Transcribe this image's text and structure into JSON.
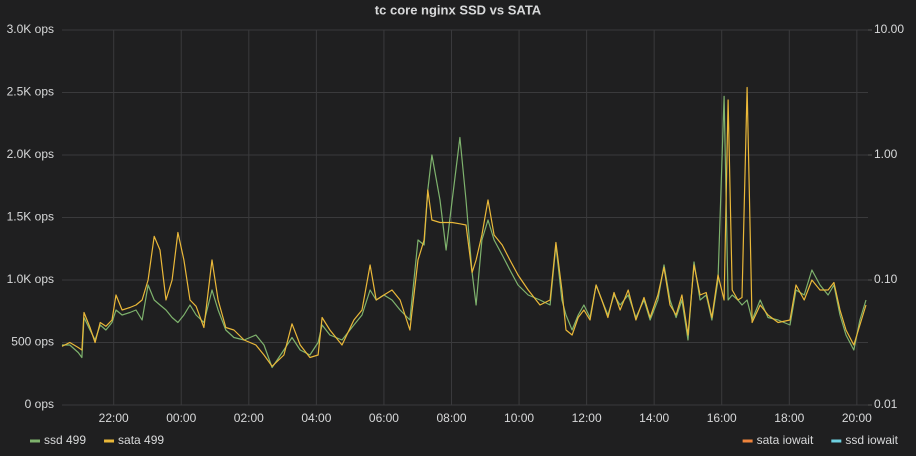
{
  "chart_data": {
    "type": "line",
    "title": "tc core nginx SSD vs SATA",
    "x": [
      20.47,
      20.7,
      20.95,
      21.06,
      21.12,
      21.3,
      21.45,
      21.6,
      21.77,
      21.95,
      22.07,
      22.25,
      22.48,
      22.66,
      22.84,
      23.02,
      23.2,
      23.37,
      23.55,
      23.73,
      23.9,
      24.08,
      24.26,
      24.44,
      24.67,
      24.91,
      25.09,
      25.32,
      25.56,
      25.86,
      26.21,
      26.45,
      26.69,
      27.04,
      27.28,
      27.52,
      27.81,
      28.05,
      28.17,
      28.4,
      28.76,
      29.11,
      29.35,
      29.59,
      29.77,
      30.0,
      30.24,
      30.48,
      30.77,
      31.01,
      31.19,
      31.3,
      31.42,
      31.66,
      31.84,
      32.02,
      32.25,
      32.43,
      32.61,
      32.73,
      32.9,
      33.08,
      33.26,
      33.5,
      33.73,
      33.97,
      34.27,
      34.62,
      34.92,
      35.09,
      35.27,
      35.39,
      35.57,
      35.75,
      35.92,
      36.1,
      36.28,
      36.45,
      36.63,
      36.81,
      36.99,
      37.23,
      37.46,
      37.7,
      37.88,
      38.11,
      38.29,
      38.47,
      38.65,
      38.82,
      39.0,
      39.18,
      39.36,
      39.54,
      39.71,
      39.89,
      40.07,
      40.19,
      40.31,
      40.48,
      40.6,
      40.75,
      40.9,
      41.14,
      41.37,
      41.67,
      42.02,
      42.2,
      42.44,
      42.67,
      42.91,
      43.15,
      43.32,
      43.5,
      43.68,
      43.91,
      44.09,
      44.27
    ],
    "series": [
      {
        "name": "ssd 499",
        "color": "#7eb26d",
        "values": [
          480,
          480,
          420,
          380,
          700,
          600,
          520,
          640,
          600,
          660,
          760,
          720,
          740,
          760,
          680,
          960,
          840,
          800,
          760,
          700,
          660,
          720,
          800,
          720,
          660,
          920,
          760,
          600,
          540,
          520,
          560,
          480,
          300,
          440,
          540,
          440,
          400,
          500,
          640,
          560,
          520,
          640,
          720,
          920,
          840,
          880,
          840,
          760,
          680,
          1320,
          1280,
          1720,
          2000,
          1640,
          1240,
          1640,
          2140,
          1640,
          1060,
          800,
          1320,
          1480,
          1320,
          1200,
          1080,
          960,
          880,
          840,
          800,
          1280,
          840,
          720,
          600,
          720,
          800,
          700,
          960,
          840,
          720,
          880,
          800,
          880,
          700,
          840,
          680,
          840,
          1120,
          840,
          700,
          840,
          520,
          1144,
          840,
          880,
          680,
          1000,
          2470,
          840,
          880,
          840,
          800,
          840,
          680,
          840,
          700,
          680,
          640,
          920,
          880,
          1080,
          960,
          880,
          960,
          720,
          560,
          440,
          680,
          840
        ]
      },
      {
        "name": "sata 499",
        "color": "#eab839",
        "values": [
          470,
          500,
          460,
          440,
          740,
          620,
          500,
          660,
          630,
          680,
          880,
          760,
          780,
          800,
          840,
          1000,
          1350,
          1240,
          840,
          1000,
          1380,
          1160,
          840,
          790,
          620,
          1160,
          840,
          620,
          600,
          520,
          480,
          400,
          310,
          400,
          650,
          480,
          380,
          400,
          700,
          600,
          480,
          680,
          760,
          1120,
          840,
          880,
          920,
          840,
          600,
          1160,
          1320,
          1720,
          1480,
          1460,
          1460,
          1460,
          1450,
          1440,
          1060,
          1160,
          1360,
          1640,
          1360,
          1280,
          1160,
          1040,
          920,
          800,
          840,
          1300,
          920,
          600,
          560,
          700,
          760,
          680,
          960,
          840,
          700,
          900,
          760,
          920,
          680,
          860,
          700,
          880,
          1100,
          800,
          720,
          880,
          560,
          1120,
          880,
          900,
          700,
          1040,
          840,
          2440,
          920,
          840,
          860,
          2540,
          660,
          800,
          720,
          660,
          680,
          960,
          840,
          1000,
          920,
          920,
          980,
          760,
          600,
          480,
          640,
          800
        ]
      },
      {
        "name": "sata iowait",
        "color": "#ef843c",
        "axis": "y2"
      },
      {
        "name": "ssd iowait",
        "color": "#6ed0e0",
        "axis": "y2"
      }
    ],
    "xlim": [
      20.47,
      44.33
    ],
    "xticks": [
      {
        "value": 22,
        "label": "22:00"
      },
      {
        "value": 24,
        "label": "00:00"
      },
      {
        "value": 26,
        "label": "02:00"
      },
      {
        "value": 28,
        "label": "04:00"
      },
      {
        "value": 30,
        "label": "06:00"
      },
      {
        "value": 32,
        "label": "08:00"
      },
      {
        "value": 34,
        "label": "10:00"
      },
      {
        "value": 36,
        "label": "12:00"
      },
      {
        "value": 38,
        "label": "14:00"
      },
      {
        "value": 40,
        "label": "16:00"
      },
      {
        "value": 42,
        "label": "18:00"
      },
      {
        "value": 44,
        "label": "20:00"
      }
    ],
    "ylim": [
      0,
      3000
    ],
    "yticks": [
      {
        "value": 0,
        "label": "0 ops"
      },
      {
        "value": 500,
        "label": "500 ops"
      },
      {
        "value": 1000,
        "label": "1.0K ops"
      },
      {
        "value": 1500,
        "label": "1.5K ops"
      },
      {
        "value": 2000,
        "label": "2.0K ops"
      },
      {
        "value": 2500,
        "label": "2.5K ops"
      },
      {
        "value": 3000,
        "label": "3.0K ops"
      }
    ],
    "y2lim": [
      0.01,
      10
    ],
    "y2log": true,
    "y2ticks": [
      {
        "value": 0.01,
        "label": "0.01"
      },
      {
        "value": 0.1,
        "label": "0.10"
      },
      {
        "value": 1,
        "label": "1.00"
      },
      {
        "value": 10,
        "label": "10.00"
      }
    ],
    "grid": true
  }
}
